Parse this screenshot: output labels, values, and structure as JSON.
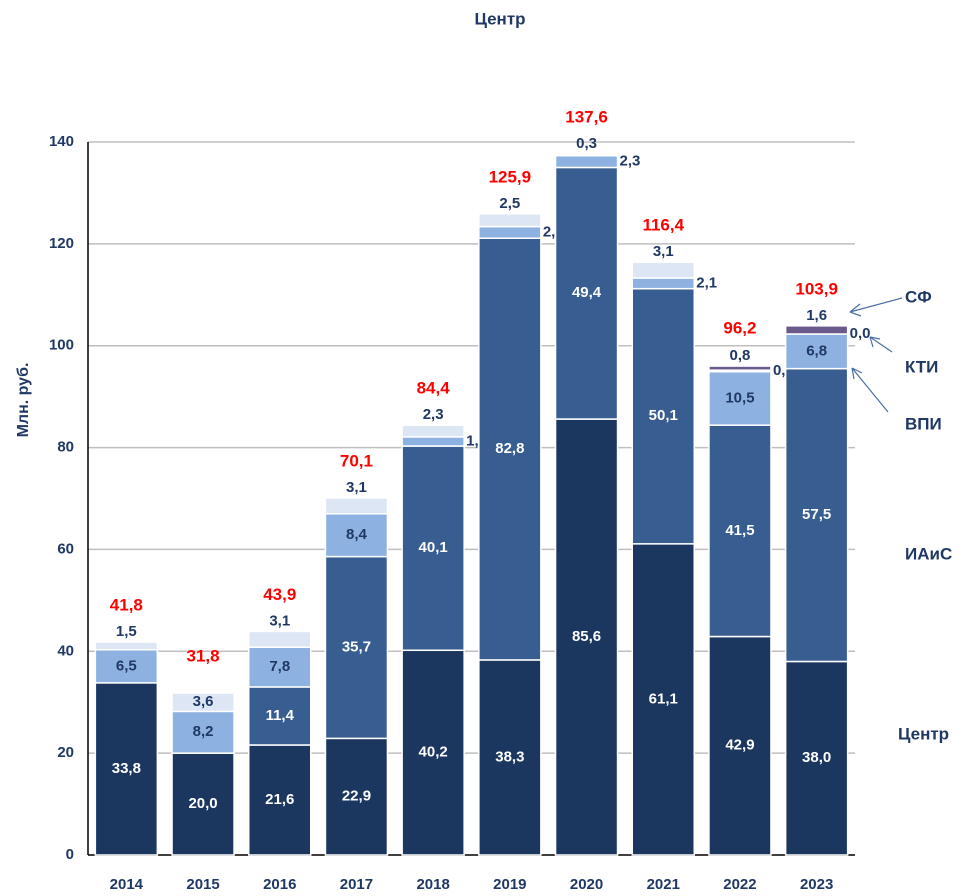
{
  "chart_data": {
    "type": "stacked_bar",
    "title": "Центр",
    "y_label": "Млн. руб.",
    "categories": [
      "2014",
      "2015",
      "2016",
      "2017",
      "2018",
      "2019",
      "2020",
      "2021",
      "2022",
      "2023"
    ],
    "series": [
      {
        "name": "Центр",
        "color": "#1b365f",
        "values": [
          33.8,
          20.0,
          21.6,
          22.9,
          40.2,
          38.3,
          85.6,
          61.1,
          42.9,
          38.0
        ],
        "value_labels": [
          "33,8",
          "20,0",
          "21,6",
          "22,9",
          "40,2",
          "38,3",
          "85,6",
          "61,1",
          "42,9",
          "38,0"
        ]
      },
      {
        "name": "ИАиС",
        "color": "#375d91",
        "values": [
          null,
          null,
          11.4,
          35.7,
          40.1,
          82.8,
          49.4,
          50.1,
          41.5,
          57.5
        ],
        "value_labels": [
          null,
          null,
          "11,4",
          "35,7",
          "40,1",
          "82,8",
          "49,4",
          "50,1",
          "41,5",
          "57,5"
        ]
      },
      {
        "name": "ВПИ",
        "color": "#8db2e2",
        "values": [
          6.5,
          8.2,
          7.8,
          8.4,
          1.8,
          2.3,
          2.3,
          2.1,
          10.5,
          6.8
        ],
        "value_labels": [
          "6,5",
          "8,2",
          "7,8",
          "8,4",
          "1,8",
          "2,3",
          "2,3",
          "2,1",
          "10,5",
          "6,8"
        ]
      },
      {
        "name": "КТИ",
        "color": "#dce6f4",
        "values": [
          1.5,
          3.6,
          3.1,
          3.1,
          2.3,
          2.5,
          0.3,
          3.1,
          0.3,
          0.0
        ],
        "value_labels": [
          "1,5",
          "3,6",
          "3,1",
          "3,1",
          "2,3",
          "2,5",
          "0,3",
          "3,1",
          "0,3",
          "0,0"
        ]
      },
      {
        "name": "СФ",
        "color": "#6a5a8c",
        "values": [
          null,
          null,
          null,
          null,
          null,
          null,
          null,
          null,
          0.8,
          1.6
        ],
        "value_labels": [
          null,
          null,
          null,
          null,
          null,
          null,
          null,
          null,
          "0,8",
          "1,6"
        ]
      }
    ],
    "totals": [
      41.8,
      31.8,
      43.9,
      70.1,
      84.4,
      125.9,
      137.6,
      116.4,
      96.2,
      103.9
    ],
    "totals_labels": [
      "41,8",
      "31,8",
      "43,9",
      "70,1",
      "84,4",
      "125,9",
      "137,6",
      "116,4",
      "96,2",
      "103,9"
    ],
    "totals_color": "#ff0000",
    "ylim": [
      0,
      140
    ],
    "yticks": [
      0,
      20,
      40,
      60,
      80,
      100,
      120,
      140
    ],
    "grid": true
  }
}
